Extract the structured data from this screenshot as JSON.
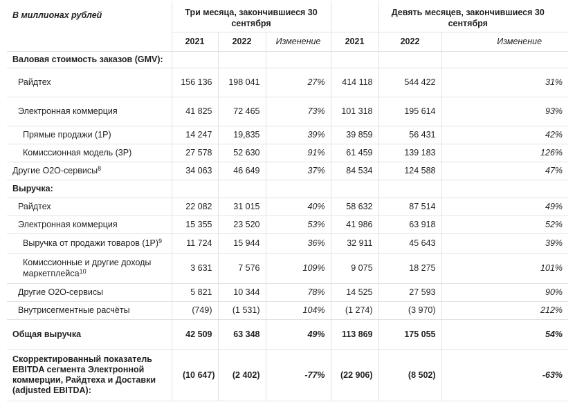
{
  "header": {
    "units": "В миллионах рублей",
    "three_months": "Три месяца, закончившиеся 30 сентября",
    "nine_months": "Девять месяцев, закончившиеся 30 сентября",
    "y2021": "2021",
    "y2022": "2022",
    "change": "Изменение"
  },
  "gmv": {
    "title": "Валовая стоимость заказов (GMV):",
    "ridetech": {
      "label": "Райдтех",
      "q21": "156 136",
      "q22": "198 041",
      "qchg": "27%",
      "n21": "414 118",
      "n22": "544 422",
      "nchg": "31%"
    },
    "ecom": {
      "label": "Электронная коммерция",
      "q21": "41 825",
      "q22": "72 465",
      "qchg": "73%",
      "n21": "101 318",
      "n22": "195 614",
      "nchg": "93%"
    },
    "direct": {
      "label": "Прямые продажи (1P)",
      "q21": "14 247",
      "q22": "19,835",
      "qchg": "39%",
      "n21": "39 859",
      "n22": "56 431",
      "nchg": "42%"
    },
    "commission": {
      "label": "Комиссионная модель (3P)",
      "q21": "27 578",
      "q22": "52 630",
      "qchg": "91%",
      "n21": "61 459",
      "n22": "139 183",
      "nchg": "126%"
    },
    "other": {
      "label": "Другие O2O-сервисы",
      "sup": "8",
      "q21": "34 063",
      "q22": "46 649",
      "qchg": "37%",
      "n21": "84 534",
      "n22": "124 588",
      "nchg": "47%"
    }
  },
  "revenue": {
    "title": "Выручка:",
    "ridetech": {
      "label": "Райдтех",
      "q21": "22 082",
      "q22": "31 015",
      "qchg": "40%",
      "n21": "58 632",
      "n22": "87 514",
      "nchg": "49%"
    },
    "ecom": {
      "label": "Электронная коммерция",
      "q21": "15 355",
      "q22": "23 520",
      "qchg": "53%",
      "n21": "41 986",
      "n22": "63 918",
      "nchg": "52%"
    },
    "goods": {
      "label": "Выручка от продажи товаров (1P)",
      "sup": "9",
      "q21": "11 724",
      "q22": "15 944",
      "qchg": "36%",
      "n21": "32 911",
      "n22": "45 643",
      "nchg": "39%"
    },
    "marketplace": {
      "label": "Комиссионные и другие доходы маркетплейса",
      "sup": "10",
      "q21": "3 631",
      "q22": "7 576",
      "qchg": "109%",
      "n21": "9 075",
      "n22": "18 275",
      "nchg": "101%"
    },
    "other": {
      "label": "Другие O2O-сервисы",
      "q21": "5 821",
      "q22": "10 344",
      "qchg": "78%",
      "n21": "14 525",
      "n22": "27 593",
      "nchg": "90%"
    },
    "interseg": {
      "label": "Внутрисегментные расчёты",
      "q21": "(749)",
      "q22": "(1 531)",
      "qchg": "104%",
      "n21": "(1 274)",
      "n22": "(3 970)",
      "nchg": "212%"
    }
  },
  "total": {
    "label": "Общая выручка",
    "q21": "42 509",
    "q22": "63 348",
    "qchg": "49%",
    "n21": "113 869",
    "n22": "175 055",
    "nchg": "54%"
  },
  "ebitda": {
    "label": "Скорректированный показатель EBITDA сегмента Электронной коммерции, Райдтеха и Доставки (adjusted EBITDA):",
    "q21": "(10 647)",
    "q22": "(2 402)",
    "qchg": "-77%",
    "n21": "(22 906)",
    "n22": "(8 502)",
    "nchg": "-63%"
  }
}
